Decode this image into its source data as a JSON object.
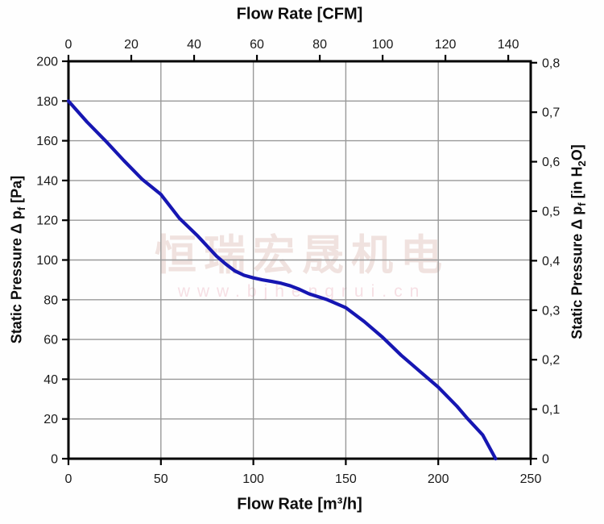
{
  "chart_data": {
    "type": "line",
    "axes": {
      "top": {
        "label": "Flow Rate [CFM]",
        "unit": "CFM",
        "ticks": [
          0,
          20,
          40,
          60,
          80,
          100,
          120,
          140
        ],
        "cfm_to_m3h": 1.699
      },
      "bottom": {
        "label": "Flow Rate [m³/h]",
        "unit": "m³/h",
        "min": 0,
        "max": 250,
        "ticks": [
          0,
          50,
          100,
          150,
          200,
          250
        ]
      },
      "left": {
        "label_text": "Static Pressure Δ pf [Pa]",
        "label_parts": [
          {
            "t": "Static Pressure Δ p"
          },
          {
            "t": "f",
            "sub": true
          },
          {
            "t": " [Pa]"
          }
        ],
        "unit": "Pa",
        "min": 0,
        "max": 200,
        "tick_step": 20
      },
      "right": {
        "label_text": "Static Pressure Δ pf [in H2O]",
        "label_parts": [
          {
            "t": "Static Pressure Δ p"
          },
          {
            "t": "f",
            "sub": true
          },
          {
            "t": " [in H"
          },
          {
            "t": "2",
            "sub": true
          },
          {
            "t": "O]"
          }
        ],
        "unit": "in H2O",
        "min": 0,
        "max": 0.8,
        "inh2o_to_pa": 249.09,
        "ticks": [
          {
            "v": 0.0,
            "label": "0"
          },
          {
            "v": 0.1,
            "label": "0,1"
          },
          {
            "v": 0.2,
            "label": "0,2"
          },
          {
            "v": 0.3,
            "label": "0,3"
          },
          {
            "v": 0.4,
            "label": "0,4"
          },
          {
            "v": 0.5,
            "label": "0,5"
          },
          {
            "v": 0.6,
            "label": "0,6"
          },
          {
            "v": 0.7,
            "label": "0,7"
          },
          {
            "v": 0.8,
            "label": "0,8"
          }
        ]
      }
    },
    "grid": {
      "vertical_m3h": [
        50,
        100,
        150,
        200
      ],
      "horizontal_pa": [
        20,
        40,
        60,
        80,
        100,
        120,
        140,
        160,
        180
      ]
    },
    "series": [
      {
        "name": "static-pressure-curve",
        "color": "#1616b2",
        "points": [
          [
            0,
            180
          ],
          [
            10,
            169.5
          ],
          [
            20,
            160
          ],
          [
            30,
            150
          ],
          [
            40,
            140.5
          ],
          [
            50,
            133
          ],
          [
            60,
            121
          ],
          [
            70,
            112
          ],
          [
            80,
            102
          ],
          [
            85,
            98
          ],
          [
            90,
            94.5
          ],
          [
            95,
            92.3
          ],
          [
            100,
            91
          ],
          [
            105,
            90
          ],
          [
            110,
            89.2
          ],
          [
            115,
            88.3
          ],
          [
            120,
            87
          ],
          [
            125,
            85.2
          ],
          [
            130,
            83
          ],
          [
            140,
            80
          ],
          [
            150,
            76
          ],
          [
            160,
            69
          ],
          [
            170,
            61
          ],
          [
            180,
            52
          ],
          [
            190,
            44
          ],
          [
            200,
            36
          ],
          [
            210,
            26.5
          ],
          [
            216,
            20
          ],
          [
            224,
            12
          ],
          [
            231,
            0
          ]
        ]
      }
    ]
  },
  "watermark": {
    "line1": "恒瑞宏晟机电",
    "line2": "www.bjhengrui.cn"
  },
  "colors": {
    "curve": "#1616b2",
    "grid": "#999999",
    "axis": "#000000",
    "tick_text": "#1a1a1a",
    "watermark_cn": "#f0e2df",
    "watermark_url": "#f6dfe4"
  }
}
